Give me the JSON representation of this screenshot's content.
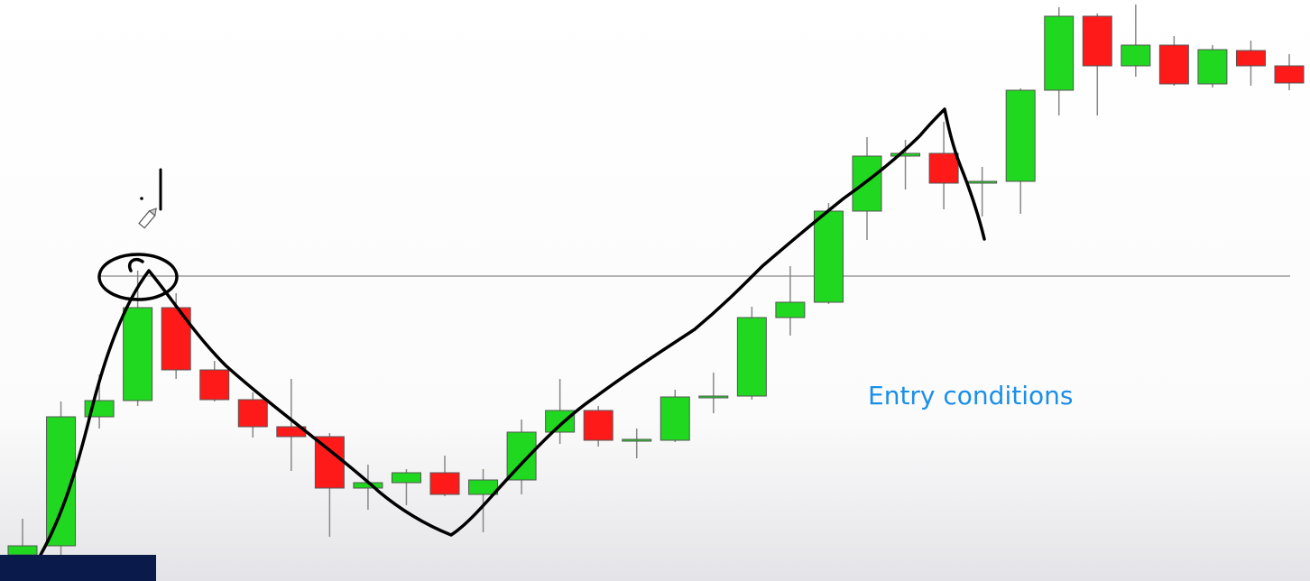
{
  "chart_data": {
    "type": "candlestick",
    "open": [
      29,
      39,
      182,
      200,
      303,
      234,
      201,
      171,
      160,
      103,
      109,
      120,
      96,
      112,
      165,
      189,
      155,
      156,
      203,
      205,
      292,
      309,
      410,
      471,
      474,
      441,
      443,
      544,
      626,
      571,
      594,
      551,
      588,
      571
    ],
    "high": [
      69,
      199,
      229,
      344,
      319,
      244,
      209,
      224,
      164,
      129,
      124,
      139,
      124,
      179,
      224,
      194,
      169,
      212,
      231,
      304,
      349,
      419,
      492,
      489,
      509,
      459,
      546,
      636,
      629,
      639,
      604,
      594,
      599,
      584
    ],
    "low": [
      4,
      29,
      169,
      194,
      224,
      199,
      159,
      122,
      49,
      79,
      84,
      94,
      54,
      96,
      152,
      149,
      136,
      154,
      186,
      201,
      272,
      307,
      378,
      434,
      412,
      404,
      407,
      516,
      516,
      559,
      549,
      547,
      549,
      544
    ],
    "close": [
      39,
      182,
      200,
      303,
      234,
      201,
      171,
      160,
      103,
      109,
      120,
      96,
      112,
      165,
      189,
      156,
      157,
      204,
      205,
      292,
      309,
      410,
      471,
      474,
      441,
      443,
      544,
      626,
      571,
      594,
      551,
      589,
      571,
      552
    ],
    "up_color": "#1fd81f",
    "down_color": "#ff1a1a",
    "ylim": [
      0,
      644
    ],
    "level": 338,
    "annotation": "Entry conditions"
  }
}
